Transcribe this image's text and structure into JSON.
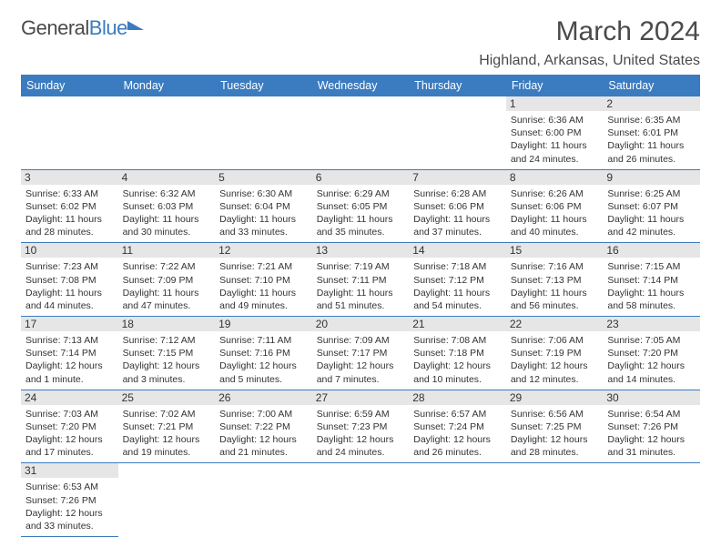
{
  "logo": {
    "text1": "General",
    "text2": "Blue"
  },
  "title": "March 2024",
  "location": "Highland, Arkansas, United States",
  "day_headers": [
    "Sunday",
    "Monday",
    "Tuesday",
    "Wednesday",
    "Thursday",
    "Friday",
    "Saturday"
  ],
  "colors": {
    "header_bg": "#3b7bbf",
    "header_text": "#ffffff",
    "daynum_bg": "#e6e6e6",
    "text": "#333333",
    "border": "#3b7bbf"
  },
  "weeks": [
    [
      null,
      null,
      null,
      null,
      null,
      {
        "num": "1",
        "sunrise": "Sunrise: 6:36 AM",
        "sunset": "Sunset: 6:00 PM",
        "daylight": "Daylight: 11 hours and 24 minutes."
      },
      {
        "num": "2",
        "sunrise": "Sunrise: 6:35 AM",
        "sunset": "Sunset: 6:01 PM",
        "daylight": "Daylight: 11 hours and 26 minutes."
      }
    ],
    [
      {
        "num": "3",
        "sunrise": "Sunrise: 6:33 AM",
        "sunset": "Sunset: 6:02 PM",
        "daylight": "Daylight: 11 hours and 28 minutes."
      },
      {
        "num": "4",
        "sunrise": "Sunrise: 6:32 AM",
        "sunset": "Sunset: 6:03 PM",
        "daylight": "Daylight: 11 hours and 30 minutes."
      },
      {
        "num": "5",
        "sunrise": "Sunrise: 6:30 AM",
        "sunset": "Sunset: 6:04 PM",
        "daylight": "Daylight: 11 hours and 33 minutes."
      },
      {
        "num": "6",
        "sunrise": "Sunrise: 6:29 AM",
        "sunset": "Sunset: 6:05 PM",
        "daylight": "Daylight: 11 hours and 35 minutes."
      },
      {
        "num": "7",
        "sunrise": "Sunrise: 6:28 AM",
        "sunset": "Sunset: 6:06 PM",
        "daylight": "Daylight: 11 hours and 37 minutes."
      },
      {
        "num": "8",
        "sunrise": "Sunrise: 6:26 AM",
        "sunset": "Sunset: 6:06 PM",
        "daylight": "Daylight: 11 hours and 40 minutes."
      },
      {
        "num": "9",
        "sunrise": "Sunrise: 6:25 AM",
        "sunset": "Sunset: 6:07 PM",
        "daylight": "Daylight: 11 hours and 42 minutes."
      }
    ],
    [
      {
        "num": "10",
        "sunrise": "Sunrise: 7:23 AM",
        "sunset": "Sunset: 7:08 PM",
        "daylight": "Daylight: 11 hours and 44 minutes."
      },
      {
        "num": "11",
        "sunrise": "Sunrise: 7:22 AM",
        "sunset": "Sunset: 7:09 PM",
        "daylight": "Daylight: 11 hours and 47 minutes."
      },
      {
        "num": "12",
        "sunrise": "Sunrise: 7:21 AM",
        "sunset": "Sunset: 7:10 PM",
        "daylight": "Daylight: 11 hours and 49 minutes."
      },
      {
        "num": "13",
        "sunrise": "Sunrise: 7:19 AM",
        "sunset": "Sunset: 7:11 PM",
        "daylight": "Daylight: 11 hours and 51 minutes."
      },
      {
        "num": "14",
        "sunrise": "Sunrise: 7:18 AM",
        "sunset": "Sunset: 7:12 PM",
        "daylight": "Daylight: 11 hours and 54 minutes."
      },
      {
        "num": "15",
        "sunrise": "Sunrise: 7:16 AM",
        "sunset": "Sunset: 7:13 PM",
        "daylight": "Daylight: 11 hours and 56 minutes."
      },
      {
        "num": "16",
        "sunrise": "Sunrise: 7:15 AM",
        "sunset": "Sunset: 7:14 PM",
        "daylight": "Daylight: 11 hours and 58 minutes."
      }
    ],
    [
      {
        "num": "17",
        "sunrise": "Sunrise: 7:13 AM",
        "sunset": "Sunset: 7:14 PM",
        "daylight": "Daylight: 12 hours and 1 minute."
      },
      {
        "num": "18",
        "sunrise": "Sunrise: 7:12 AM",
        "sunset": "Sunset: 7:15 PM",
        "daylight": "Daylight: 12 hours and 3 minutes."
      },
      {
        "num": "19",
        "sunrise": "Sunrise: 7:11 AM",
        "sunset": "Sunset: 7:16 PM",
        "daylight": "Daylight: 12 hours and 5 minutes."
      },
      {
        "num": "20",
        "sunrise": "Sunrise: 7:09 AM",
        "sunset": "Sunset: 7:17 PM",
        "daylight": "Daylight: 12 hours and 7 minutes."
      },
      {
        "num": "21",
        "sunrise": "Sunrise: 7:08 AM",
        "sunset": "Sunset: 7:18 PM",
        "daylight": "Daylight: 12 hours and 10 minutes."
      },
      {
        "num": "22",
        "sunrise": "Sunrise: 7:06 AM",
        "sunset": "Sunset: 7:19 PM",
        "daylight": "Daylight: 12 hours and 12 minutes."
      },
      {
        "num": "23",
        "sunrise": "Sunrise: 7:05 AM",
        "sunset": "Sunset: 7:20 PM",
        "daylight": "Daylight: 12 hours and 14 minutes."
      }
    ],
    [
      {
        "num": "24",
        "sunrise": "Sunrise: 7:03 AM",
        "sunset": "Sunset: 7:20 PM",
        "daylight": "Daylight: 12 hours and 17 minutes."
      },
      {
        "num": "25",
        "sunrise": "Sunrise: 7:02 AM",
        "sunset": "Sunset: 7:21 PM",
        "daylight": "Daylight: 12 hours and 19 minutes."
      },
      {
        "num": "26",
        "sunrise": "Sunrise: 7:00 AM",
        "sunset": "Sunset: 7:22 PM",
        "daylight": "Daylight: 12 hours and 21 minutes."
      },
      {
        "num": "27",
        "sunrise": "Sunrise: 6:59 AM",
        "sunset": "Sunset: 7:23 PM",
        "daylight": "Daylight: 12 hours and 24 minutes."
      },
      {
        "num": "28",
        "sunrise": "Sunrise: 6:57 AM",
        "sunset": "Sunset: 7:24 PM",
        "daylight": "Daylight: 12 hours and 26 minutes."
      },
      {
        "num": "29",
        "sunrise": "Sunrise: 6:56 AM",
        "sunset": "Sunset: 7:25 PM",
        "daylight": "Daylight: 12 hours and 28 minutes."
      },
      {
        "num": "30",
        "sunrise": "Sunrise: 6:54 AM",
        "sunset": "Sunset: 7:26 PM",
        "daylight": "Daylight: 12 hours and 31 minutes."
      }
    ],
    [
      {
        "num": "31",
        "sunrise": "Sunrise: 6:53 AM",
        "sunset": "Sunset: 7:26 PM",
        "daylight": "Daylight: 12 hours and 33 minutes."
      },
      null,
      null,
      null,
      null,
      null,
      null
    ]
  ]
}
